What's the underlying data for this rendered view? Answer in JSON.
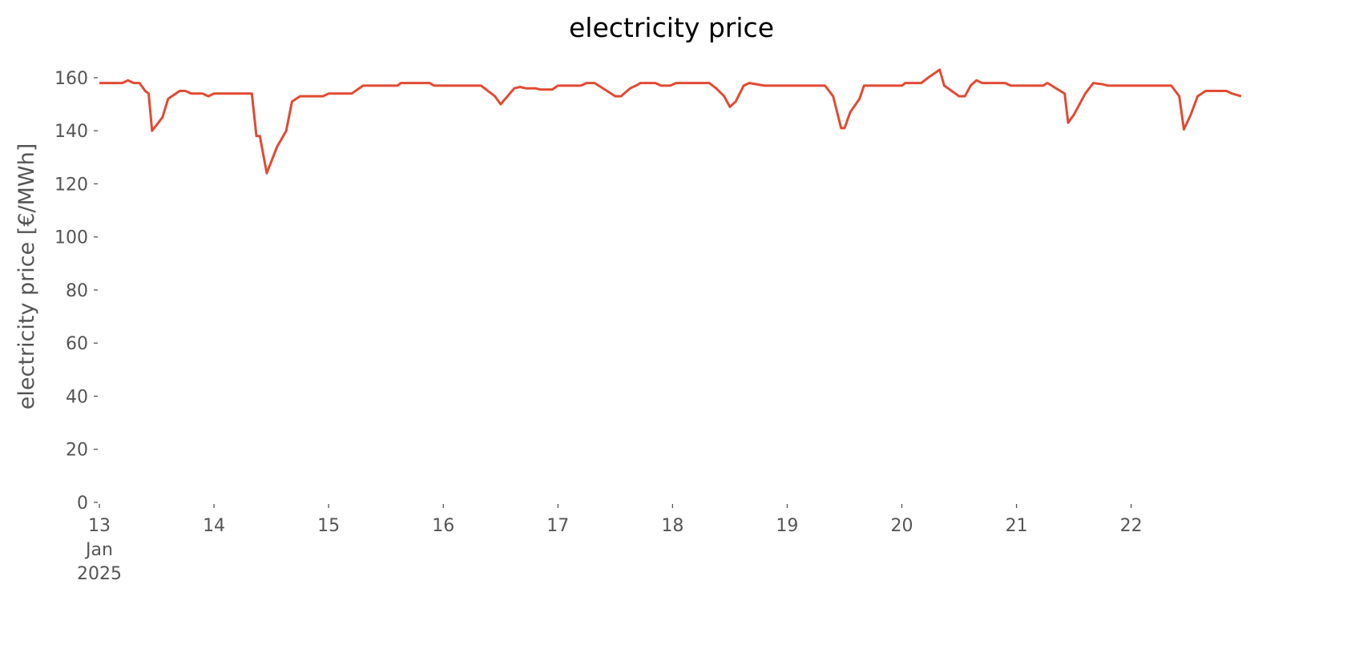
{
  "chart_data": {
    "type": "line",
    "title": "electricity price",
    "y_label": "electricity price [€/MWh]",
    "x": [
      13.0,
      13.2,
      13.25,
      13.3,
      13.35,
      13.4,
      13.43,
      13.46,
      13.55,
      13.6,
      13.7,
      13.75,
      13.8,
      13.9,
      13.95,
      14.0,
      14.33,
      14.37,
      14.4,
      14.46,
      14.55,
      14.63,
      14.68,
      14.75,
      14.95,
      15.0,
      15.2,
      15.3,
      15.6,
      15.63,
      15.88,
      15.92,
      16.33,
      16.45,
      16.5,
      16.62,
      16.67,
      16.72,
      16.8,
      16.85,
      16.95,
      17.0,
      17.2,
      17.25,
      17.32,
      17.5,
      17.55,
      17.63,
      17.68,
      17.72,
      17.85,
      17.9,
      17.98,
      18.03,
      18.32,
      18.38,
      18.45,
      18.5,
      18.55,
      18.62,
      18.67,
      18.8,
      19.33,
      19.4,
      19.47,
      19.5,
      19.55,
      19.63,
      19.67,
      20.0,
      20.03,
      20.17,
      20.23,
      20.33,
      20.37,
      20.5,
      20.55,
      20.6,
      20.65,
      20.7,
      20.9,
      20.95,
      21.23,
      21.27,
      21.42,
      21.45,
      21.5,
      21.6,
      21.67,
      21.75,
      21.8,
      22.35,
      22.42,
      22.46,
      22.52,
      22.58,
      22.65,
      22.83,
      22.88,
      22.96
    ],
    "series": [
      {
        "name": "electricity price",
        "color": "#e24a33",
        "values": [
          158,
          158,
          159,
          158,
          158,
          155,
          154,
          140,
          145,
          152,
          155,
          155,
          154,
          154,
          153,
          154,
          154,
          138,
          138,
          124,
          134,
          140,
          151,
          153,
          153,
          154,
          154,
          157,
          157,
          158,
          158,
          157,
          157,
          153,
          150,
          156,
          156.5,
          156,
          156,
          155.5,
          155.5,
          157,
          157,
          158,
          158,
          153,
          153,
          156,
          157,
          158,
          158,
          157,
          157,
          158,
          158,
          156,
          153,
          149,
          151,
          157,
          158,
          157,
          157,
          153,
          141,
          141,
          147,
          152,
          157,
          157,
          158,
          158,
          160,
          163,
          157,
          153,
          153,
          157,
          159,
          158,
          158,
          157,
          157,
          158,
          154,
          143,
          146,
          154,
          158,
          157.5,
          157,
          157,
          153,
          140.5,
          146,
          153,
          155,
          155,
          154,
          153
        ]
      }
    ],
    "xlim": [
      13,
      22.96
    ],
    "ylim": [
      0,
      163
    ],
    "xticks": [
      {
        "value": 13,
        "label": "13\nJan\n2025"
      },
      14,
      15,
      16,
      17,
      18,
      19,
      20,
      21,
      22
    ],
    "yticks": [
      0,
      20,
      40,
      60,
      80,
      100,
      120,
      140,
      160
    ],
    "grid": false
  }
}
